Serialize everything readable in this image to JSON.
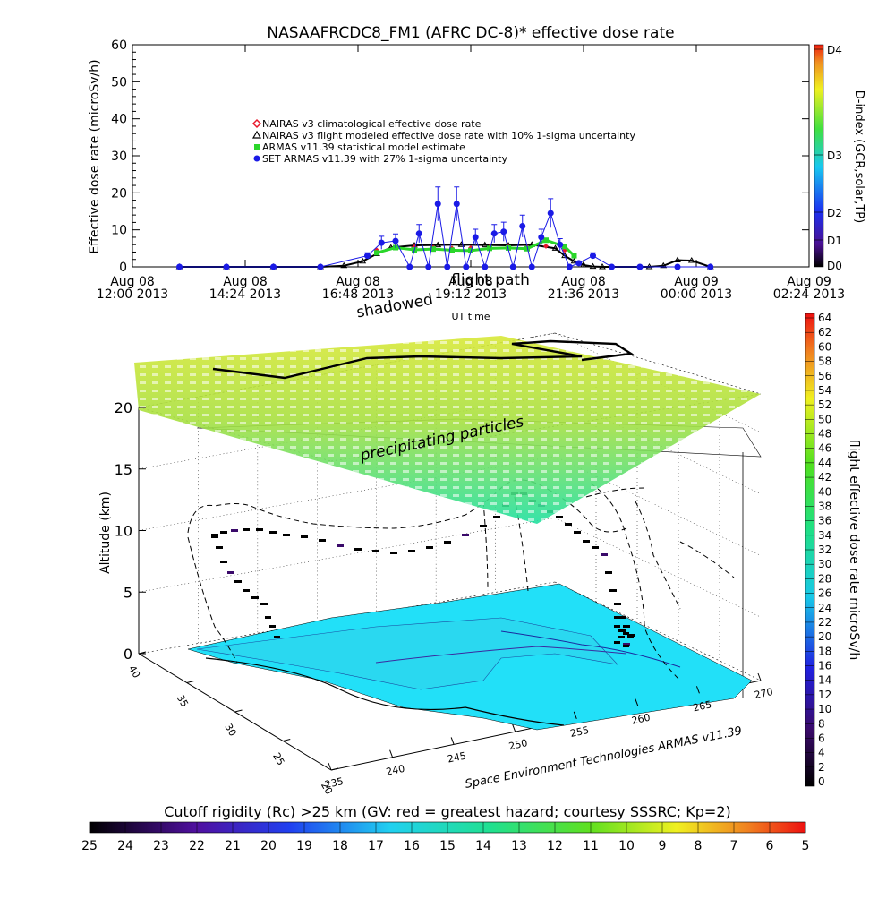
{
  "header": {
    "title": "NASAAFRCDC8_FM1 (AFRC DC-8)* effective dose rate"
  },
  "chart_data": [
    {
      "type": "scatter",
      "ylabel": "Effective dose rate (microSv/h)",
      "xlabel": "UT time",
      "ylim": [
        0,
        60
      ],
      "y_ticks": [
        "0",
        "10",
        "20",
        "30",
        "40",
        "50",
        "60"
      ],
      "x_ticks": [
        [
          "Aug 08",
          "12:00 2013"
        ],
        [
          "Aug 08",
          "14:24 2013"
        ],
        [
          "Aug 08",
          "16:48 2013"
        ],
        [
          "Aug 08",
          "19:12 2013"
        ],
        [
          "Aug 08",
          "21:36 2013"
        ],
        [
          "Aug 09",
          "00:00 2013"
        ],
        [
          "Aug 09",
          "02:24 2013"
        ]
      ],
      "overlay_text": [
        "flight path",
        "shadowed"
      ],
      "right_axis": {
        "label": "D-index (GCR,solar,TP)",
        "ticks": [
          "D4",
          "D3",
          "D2",
          "D1",
          "D0"
        ]
      },
      "legend": [
        {
          "label": "NAIRAS v3 climatological effective dose rate",
          "color": "#e8182a",
          "marker": "diamond"
        },
        {
          "label": "NAIRAS v3 flight modeled effective dose rate with 10% 1-sigma uncertainty",
          "color": "#000000",
          "marker": "triangle"
        },
        {
          "label": "ARMAS v11.39 statistical model estimate",
          "color": "#2ad62a",
          "marker": "square"
        },
        {
          "label": "SET ARMAS v11.39 with 27% 1-sigma uncertainty",
          "color": "#1a1ae6",
          "marker": "circle"
        }
      ],
      "series": [
        {
          "name": "NAIRAS v3 flight modeled effective dose rate with 10% 1-sigma uncertainty",
          "x_hours": [
            13.0,
            14.0,
            15.0,
            16.0,
            16.5,
            16.9,
            17.2,
            17.5,
            18.0,
            18.5,
            19.0,
            19.5,
            20.0,
            20.5,
            21.0,
            21.2,
            21.4,
            21.6,
            21.8,
            22.0,
            23.0,
            23.3,
            23.6,
            23.9,
            24.3
          ],
          "values": [
            0,
            0,
            0,
            0,
            0.3,
            1.5,
            3.5,
            5.2,
            5.8,
            5.9,
            6.0,
            5.9,
            5.8,
            6.0,
            5.0,
            3.0,
            1.5,
            0.5,
            0.1,
            0,
            0,
            0.3,
            1.8,
            1.7,
            0
          ]
        },
        {
          "name": "ARMAS v11.39 statistical model estimate",
          "x_hours": [
            17.2,
            17.6,
            18.0,
            18.4,
            18.8,
            19.2,
            19.6,
            20.0,
            20.4,
            20.8,
            21.2,
            21.4
          ],
          "values": [
            3.8,
            5.2,
            4.6,
            4.8,
            4.5,
            4.4,
            5.0,
            5.1,
            4.9,
            7.2,
            5.5,
            3.0
          ]
        },
        {
          "name": "SET ARMAS v11.39 with 27% 1-sigma uncertainty",
          "x_hours": [
            13.0,
            14.0,
            15.0,
            16.0,
            17.0,
            17.3,
            17.6,
            17.9,
            18.1,
            18.3,
            18.5,
            18.7,
            18.9,
            19.1,
            19.3,
            19.5,
            19.7,
            19.9,
            20.1,
            20.3,
            20.5,
            20.7,
            20.9,
            21.1,
            21.3,
            21.5,
            21.8,
            22.2,
            22.8,
            23.6,
            24.3
          ],
          "values": [
            0,
            0,
            0,
            0,
            3,
            6.5,
            7,
            0,
            9,
            0,
            17,
            0,
            17,
            0,
            8,
            0,
            9,
            9.5,
            0,
            11,
            0,
            8,
            14.5,
            6,
            0,
            1,
            3,
            0,
            0,
            0,
            0
          ]
        },
        {
          "name": "NAIRAS v3 climatological effective dose rate",
          "x_hours": [
            17.2,
            17.6,
            18.0,
            18.4,
            18.8,
            19.2,
            19.6,
            20.0,
            20.4,
            20.8,
            21.2
          ],
          "values": [
            4.5,
            5.5,
            5.4,
            5.2,
            5.0,
            5.1,
            5.3,
            5.4,
            5.3,
            5.6,
            4.5
          ]
        }
      ]
    },
    {
      "type": "scatter",
      "zlabel": "Altitude (km)",
      "z_ticks": [
        "0",
        "5",
        "10",
        "15",
        "20"
      ],
      "lat_ticks": [
        "40",
        "35",
        "30",
        "25",
        "20"
      ],
      "lon_ticks": [
        "235",
        "240",
        "245",
        "250",
        "255",
        "260",
        "265",
        "270"
      ],
      "overlay_text": [
        "precipitating particles"
      ],
      "credit": "Space Environment Technologies ARMAS v11.39",
      "colorbar": {
        "label": "flight effective dose rate microSv/h",
        "ticks": [
          "64",
          "62",
          "60",
          "58",
          "56",
          "54",
          "52",
          "50",
          "48",
          "46",
          "44",
          "42",
          "40",
          "38",
          "36",
          "34",
          "32",
          "30",
          "28",
          "26",
          "24",
          "22",
          "20",
          "18",
          "16",
          "14",
          "12",
          "10",
          "8",
          "6",
          "4",
          "2",
          "0"
        ]
      },
      "bottom_colorbar": {
        "label": "Cutoff rigidity (Rc) >25 km (GV: red = greatest hazard; courtesy SSSRC; Kp=2)",
        "ticks": [
          "25",
          "24",
          "23",
          "22",
          "21",
          "20",
          "19",
          "18",
          "17",
          "16",
          "15",
          "14",
          "13",
          "12",
          "11",
          "10",
          "9",
          "8",
          "7",
          "6",
          "5"
        ]
      }
    }
  ]
}
